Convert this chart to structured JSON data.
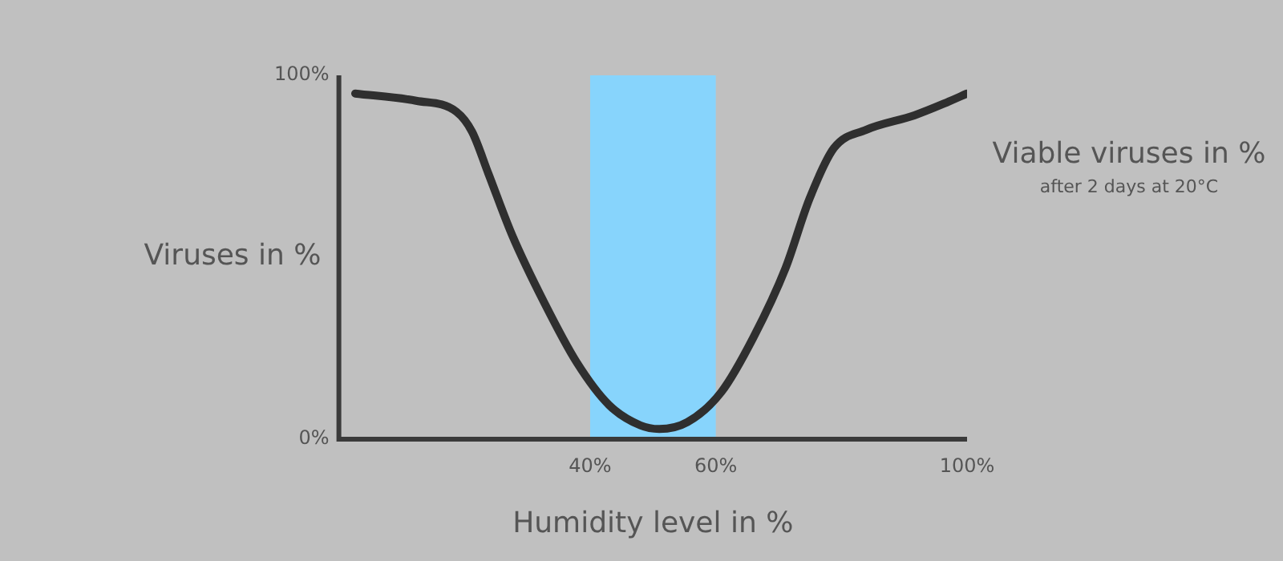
{
  "chart_data": {
    "type": "line",
    "ylabel": "Viruses in %",
    "xlabel": "Humidity level in %",
    "annotations": [
      "Viable viruses in %",
      "after 2 days at 20°C"
    ],
    "x": [
      2.6,
      12.3,
      18.7,
      21.2,
      23.8,
      27.6,
      32.7,
      37.9,
      43,
      48,
      51,
      55.5,
      60.9,
      66,
      71.1,
      74.9,
      78.8,
      83.9,
      91.6,
      96.7,
      100
    ],
    "series": [
      {
        "color": "#2f2f2f",
        "values": [
          95,
          93,
          90,
          84.5,
          73,
          56,
          37.5,
          21,
          9.4,
          3.8,
          2.8,
          4.7,
          13,
          28,
          47,
          66,
          80,
          85,
          89,
          92.5,
          95
        ]
      }
    ],
    "xlim": [
      0,
      100
    ],
    "ylim": [
      0,
      100
    ],
    "xticks": [
      {
        "value": 0,
        "label": null
      },
      {
        "value": 40,
        "label": "40%"
      },
      {
        "value": 60,
        "label": "60%"
      },
      {
        "value": 100,
        "label": "100%"
      }
    ],
    "yticks": [
      {
        "value": 0,
        "label": "0%"
      },
      {
        "value": 100,
        "label": "100%"
      }
    ],
    "bands": [
      {
        "axis": "x",
        "from": 40,
        "to": 60,
        "color": "#87d4fc"
      }
    ],
    "grid": false,
    "legend": false,
    "marker": "none",
    "line_style": "solid"
  }
}
